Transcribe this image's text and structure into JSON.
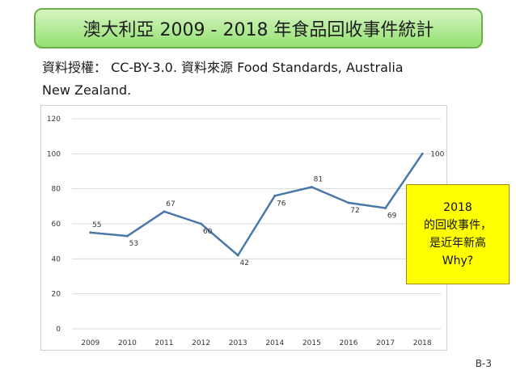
{
  "header": {
    "title": "澳大利亞  2009 - 2018  年食品回收事件統計"
  },
  "source": {
    "line1": "資料授權：  CC-BY-3.0.   資料來源  Food Standards, Australia",
    "line2": "New Zealand."
  },
  "chart_data": {
    "type": "line",
    "title": "",
    "xlabel": "",
    "ylabel": "",
    "categories": [
      "2009",
      "2010",
      "2011",
      "2012",
      "2013",
      "2014",
      "2015",
      "2016",
      "2017",
      "2018"
    ],
    "values": [
      55,
      53,
      67,
      60,
      42,
      76,
      81,
      72,
      69,
      100
    ],
    "ylim": [
      0,
      120
    ],
    "yticks": [
      0,
      20,
      40,
      60,
      80,
      100,
      120
    ],
    "grid": true,
    "line_color": "#4a78a8"
  },
  "callout": {
    "line1": "2018",
    "line2": "的回收事件，",
    "line3": "是近年新高",
    "line4": "Why?",
    "background": "#ffff00"
  },
  "footer": {
    "page_number": "B-3"
  }
}
